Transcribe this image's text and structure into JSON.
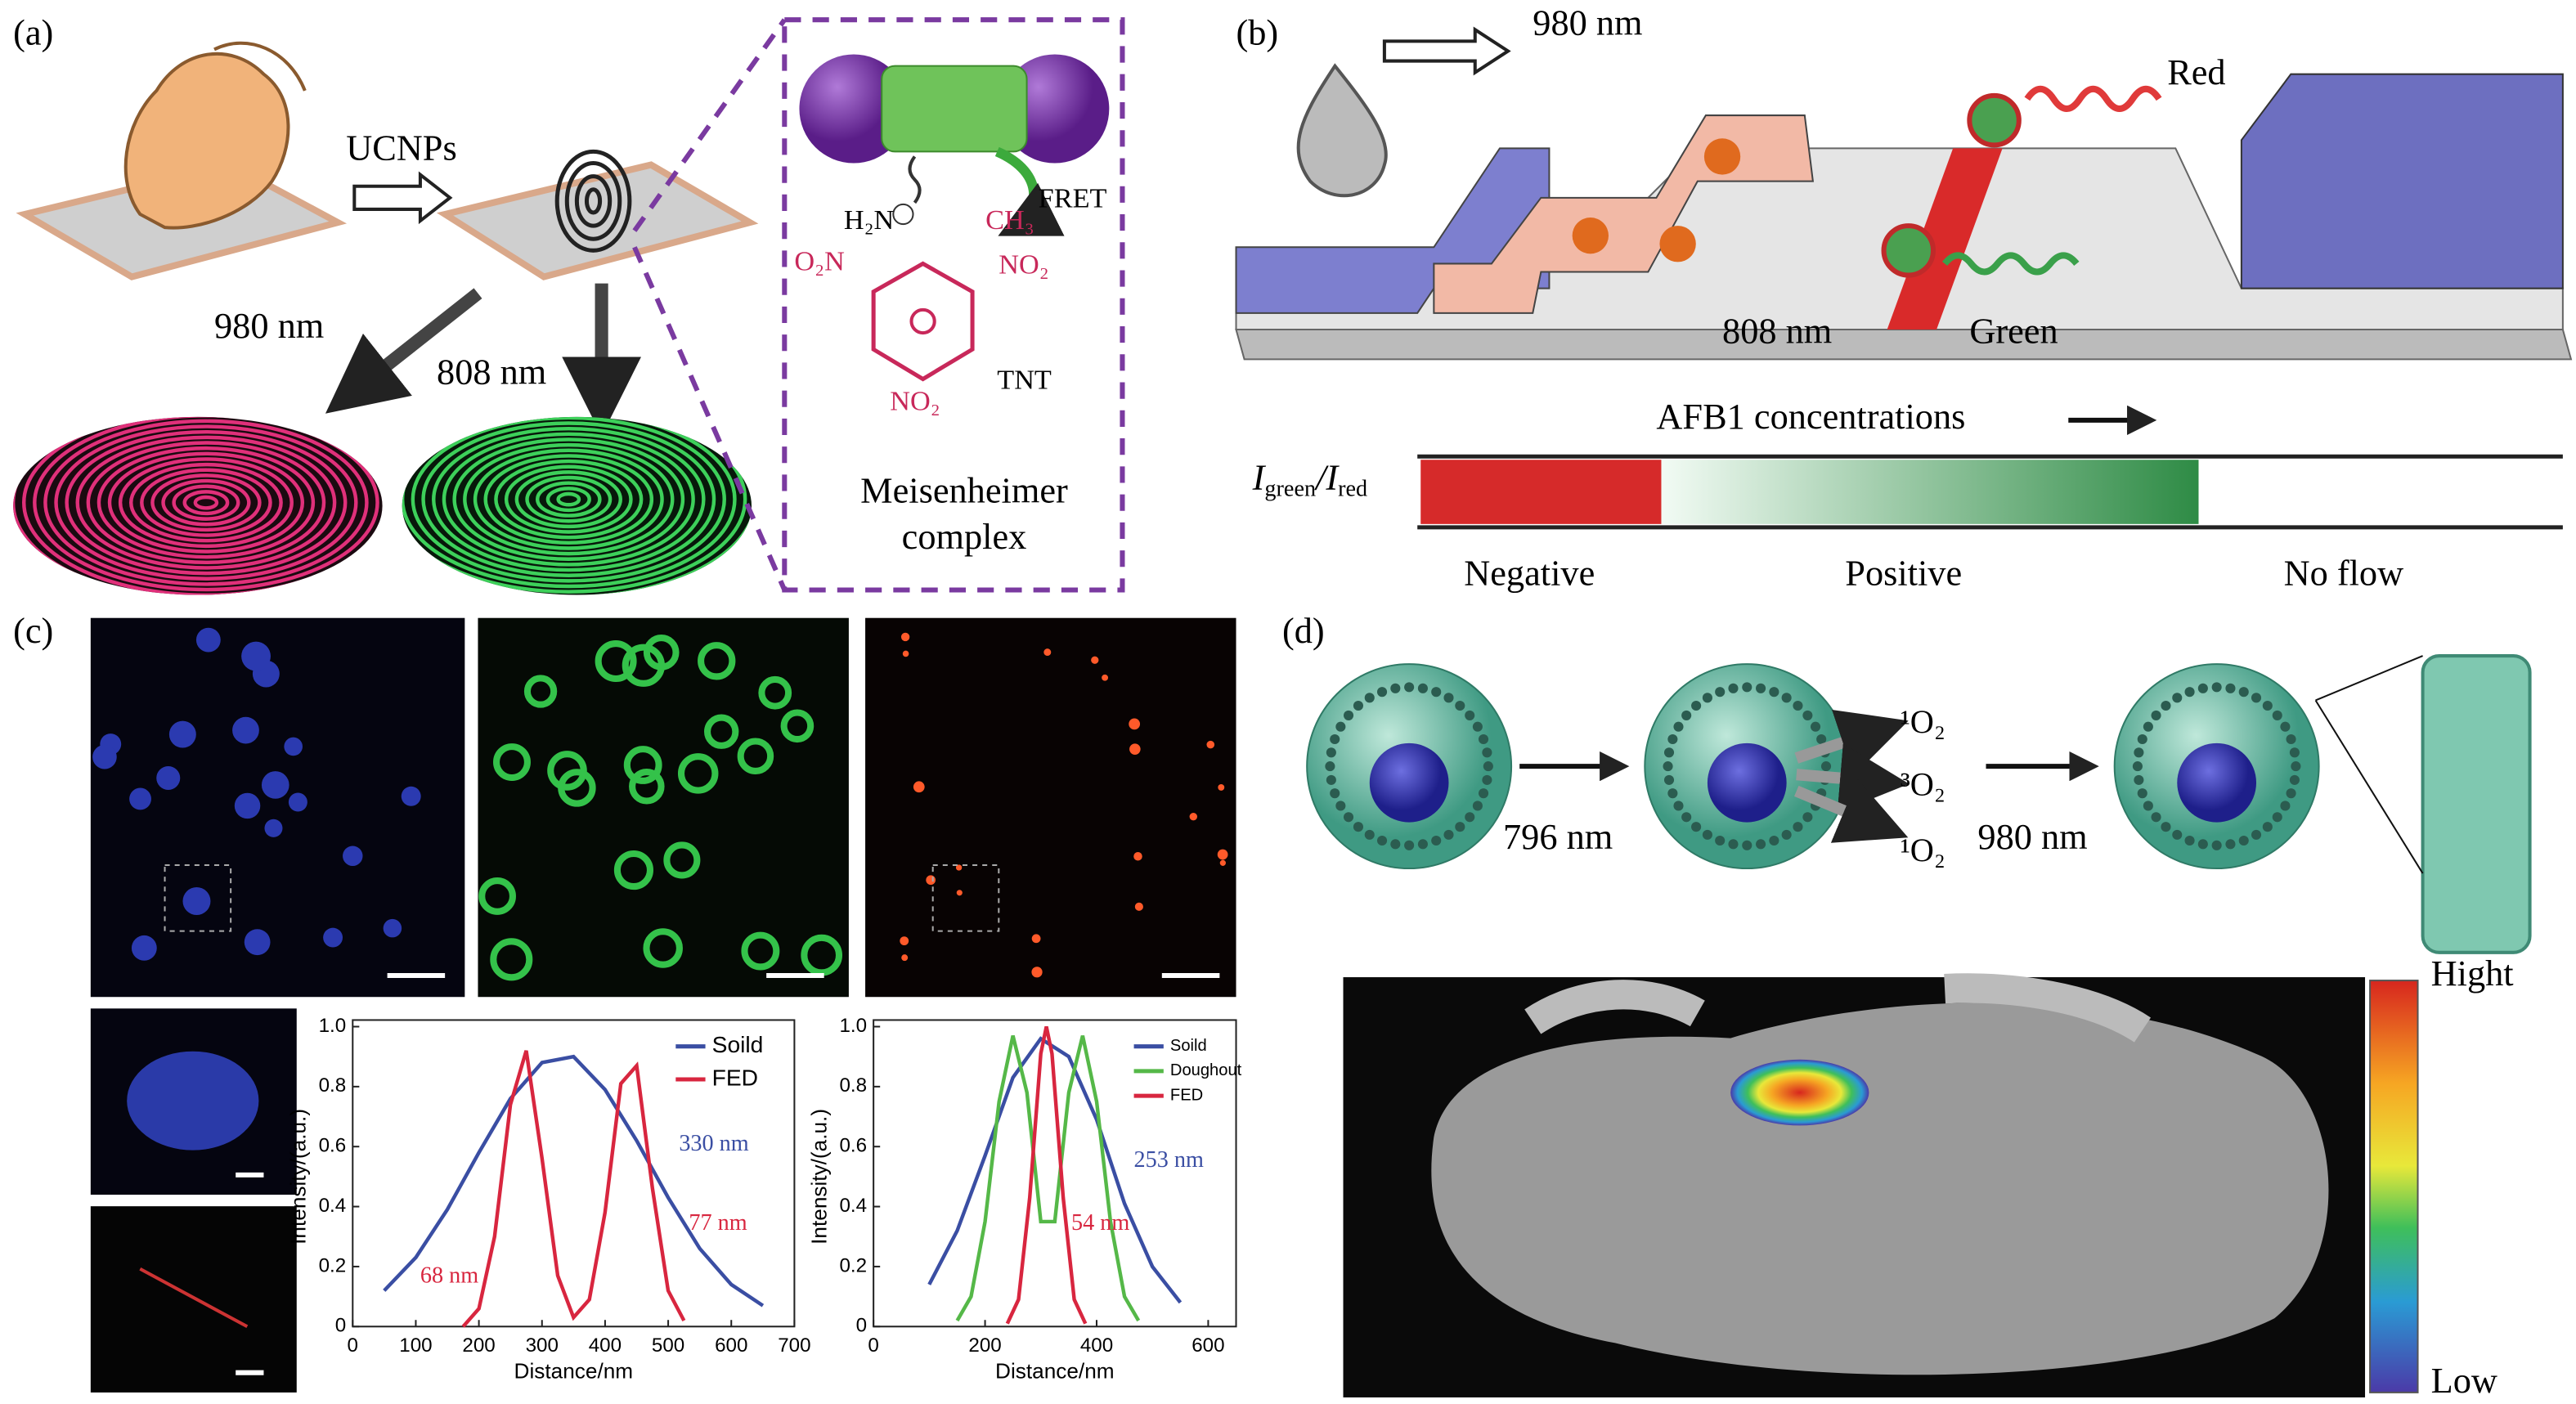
{
  "panels": {
    "a": {
      "label": "(a)",
      "reagent": "UCNPs",
      "wavelength_1": "980 nm",
      "wavelength_2": "808 nm",
      "fret": "FRET",
      "amine": "H₂N",
      "methyl": "CH₃",
      "nitro_left": "O₂N",
      "nitro_right": "NO₂",
      "nitro_bottom": "NO₂",
      "analyte": "TNT",
      "complex_name": [
        "Meisenheimer",
        "complex"
      ]
    },
    "b": {
      "label": "(b)",
      "wavelength_1": "980 nm",
      "emission_1": "Red",
      "wavelength_2": "808 nm",
      "emission_2": "Green",
      "axis_label": "AFB1 concentrations",
      "ratio": [
        "I",
        "green",
        "/I",
        "red"
      ],
      "zones": [
        "Negative",
        "Positive",
        "No flow"
      ]
    },
    "c": {
      "label": "(c)"
    },
    "d": {
      "label": "(d)",
      "wavelength_1": "796 nm",
      "species": [
        "¹O₂",
        "³O₂",
        "¹O₂"
      ],
      "wavelength_2": "980 nm",
      "scale_high": "Hight",
      "scale_low": "Low"
    }
  },
  "chart_data": [
    {
      "type": "line",
      "x_label": "Distance/nm",
      "y_label": "Intensity/(a.u.)",
      "xlim": [
        0,
        700
      ],
      "xticks": [
        0,
        100,
        200,
        300,
        400,
        500,
        600,
        700
      ],
      "ylim": [
        0,
        1
      ],
      "yticks": [
        0,
        0.2,
        0.4,
        0.6,
        0.8,
        {
          "value": 1,
          "label": "1.0"
        }
      ],
      "legend": "upper right",
      "series": [
        {
          "name": "Soild",
          "color": "#3a4ea3",
          "x": [
            50,
            100,
            150,
            200,
            250,
            300,
            350,
            400,
            450,
            500,
            550,
            600,
            650
          ],
          "values": [
            0.12,
            0.23,
            0.39,
            0.58,
            0.76,
            0.88,
            0.9,
            0.79,
            0.62,
            0.43,
            0.26,
            0.14,
            0.07
          ]
        },
        {
          "name": "FED",
          "color": "#d8263f",
          "x": [
            175,
            200,
            225,
            250,
            275,
            300,
            325,
            350,
            375,
            400,
            425,
            450,
            475,
            500,
            525
          ],
          "values": [
            0,
            0.06,
            0.3,
            0.74,
            0.92,
            0.56,
            0.17,
            0.03,
            0.09,
            0.38,
            0.81,
            0.87,
            0.46,
            0.12,
            0.02
          ]
        }
      ],
      "annotations": [
        {
          "text": "330 nm",
          "color": "#3a4ea3"
        },
        {
          "text": "77 nm",
          "color": "#d8263f"
        },
        {
          "text": "68 nm",
          "color": "#d8263f"
        }
      ]
    },
    {
      "type": "line",
      "x_label": "Distance/nm",
      "y_label": "Intensity/(a.u.)",
      "xlim": [
        0,
        650
      ],
      "xticks": [
        0,
        200,
        400,
        600
      ],
      "ylim": [
        0,
        1
      ],
      "yticks": [
        0,
        0.2,
        0.4,
        0.6,
        0.8,
        {
          "value": 1,
          "label": "1.0"
        }
      ],
      "legend": "upper right",
      "series": [
        {
          "name": "Soild",
          "color": "#3a4ea3",
          "x": [
            100,
            150,
            200,
            250,
            300,
            350,
            400,
            450,
            500,
            550
          ],
          "values": [
            0.14,
            0.32,
            0.57,
            0.83,
            0.96,
            0.9,
            0.69,
            0.41,
            0.2,
            0.08
          ]
        },
        {
          "name": "Doughout",
          "color": "#55b848",
          "x": [
            150,
            175,
            200,
            225,
            250,
            275,
            300,
            325,
            350,
            375,
            400,
            425,
            450,
            475
          ],
          "values": [
            0.02,
            0.1,
            0.35,
            0.75,
            0.97,
            0.78,
            0.35,
            0.35,
            0.78,
            0.97,
            0.75,
            0.35,
            0.1,
            0.02
          ]
        },
        {
          "name": "FED",
          "color": "#d8263f",
          "x": [
            240,
            260,
            280,
            300,
            310,
            320,
            340,
            360,
            380
          ],
          "values": [
            0.01,
            0.09,
            0.43,
            0.91,
            1,
            0.91,
            0.43,
            0.09,
            0.01
          ]
        }
      ],
      "annotations": [
        {
          "text": "253 nm",
          "color": "#3a4ea3"
        },
        {
          "text": "54 nm",
          "color": "#d8263f"
        }
      ]
    }
  ]
}
